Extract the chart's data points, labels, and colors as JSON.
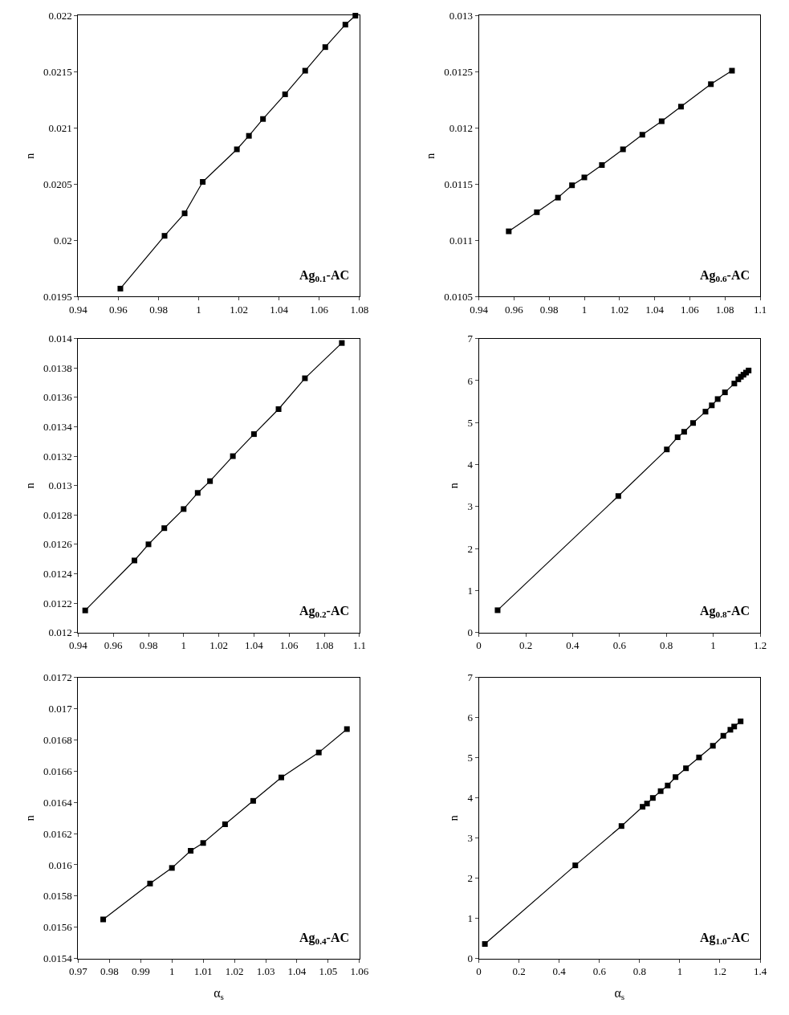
{
  "chart_data": [
    {
      "type": "line",
      "ylabel": "n",
      "annotations": [
        "Ag$_{0.1}$-AC"
      ],
      "marker": "square",
      "line_style": "solid",
      "xlim": [
        0.94,
        1.08
      ],
      "xticks": [
        0.94,
        0.96,
        0.98,
        1,
        1.02,
        1.04,
        1.06,
        1.08
      ],
      "ylim": [
        0.0195,
        0.022
      ],
      "yticks": [
        0.0195,
        0.02,
        0.0205,
        0.021,
        0.0215,
        0.022
      ],
      "series": [
        {
          "color": "#000000",
          "x": [
            0.961,
            0.983,
            0.993,
            1.002,
            1.019,
            1.025,
            1.032,
            1.043,
            1.053,
            1.063,
            1.073,
            1.078
          ],
          "values": [
            0.01957,
            0.02004,
            0.02024,
            0.02052,
            0.02081,
            0.02093,
            0.02108,
            0.0213,
            0.02151,
            0.02172,
            0.02192,
            0.022
          ]
        }
      ]
    },
    {
      "type": "line",
      "ylabel": "n",
      "annotations": [
        "Ag$_{0.6}$-AC"
      ],
      "marker": "square",
      "line_style": "solid",
      "xlim": [
        0.94,
        1.1
      ],
      "xticks": [
        0.94,
        0.96,
        0.98,
        1,
        1.02,
        1.04,
        1.06,
        1.08,
        1.1
      ],
      "ylim": [
        0.0105,
        0.013
      ],
      "yticks": [
        0.0105,
        0.011,
        0.0115,
        0.012,
        0.0125,
        0.013
      ],
      "series": [
        {
          "color": "#000000",
          "x": [
            0.957,
            0.973,
            0.985,
            0.993,
            1.0,
            1.01,
            1.022,
            1.033,
            1.044,
            1.055,
            1.072,
            1.084
          ],
          "values": [
            0.01108,
            0.01125,
            0.01138,
            0.01149,
            0.01156,
            0.01167,
            0.01181,
            0.01194,
            0.01206,
            0.01219,
            0.01239,
            0.01251
          ]
        }
      ]
    },
    {
      "type": "line",
      "ylabel": "n",
      "annotations": [
        "Ag$_{0.2}$-AC"
      ],
      "marker": "square",
      "line_style": "solid",
      "xlim": [
        0.94,
        1.1
      ],
      "xticks": [
        0.94,
        0.96,
        0.98,
        1,
        1.02,
        1.04,
        1.06,
        1.08,
        1.1
      ],
      "ylim": [
        0.012,
        0.014
      ],
      "yticks": [
        0.012,
        0.0122,
        0.0124,
        0.0126,
        0.0128,
        0.013,
        0.0132,
        0.0134,
        0.0136,
        0.0138,
        0.014
      ],
      "series": [
        {
          "color": "#000000",
          "x": [
            0.944,
            0.972,
            0.98,
            0.989,
            1.0,
            1.008,
            1.015,
            1.028,
            1.04,
            1.054,
            1.069,
            1.09
          ],
          "values": [
            0.01215,
            0.01249,
            0.0126,
            0.01271,
            0.01284,
            0.01295,
            0.01303,
            0.0132,
            0.01335,
            0.01352,
            0.01373,
            0.01397
          ]
        }
      ]
    },
    {
      "type": "line",
      "ylabel": "n",
      "annotations": [
        "Ag$_{0.8}$-AC"
      ],
      "marker": "square",
      "line_style": "solid",
      "xlim": [
        0,
        1.2
      ],
      "xticks": [
        0,
        0.2,
        0.4,
        0.6,
        0.8,
        1,
        1.2
      ],
      "ylim": [
        0,
        7
      ],
      "yticks": [
        0,
        1,
        2,
        3,
        4,
        5,
        6,
        7
      ],
      "series": [
        {
          "color": "#000000",
          "x": [
            0.08,
            0.595,
            0.802,
            0.848,
            0.876,
            0.914,
            0.967,
            0.994,
            1.019,
            1.05,
            1.09,
            1.107,
            1.118,
            1.129,
            1.14,
            1.151
          ],
          "values": [
            0.53,
            3.25,
            4.36,
            4.65,
            4.78,
            4.99,
            5.26,
            5.41,
            5.56,
            5.72,
            5.93,
            6.03,
            6.09,
            6.14,
            6.19,
            6.24
          ]
        }
      ]
    },
    {
      "type": "line",
      "ylabel": "n",
      "xlabel": "α$_{s}$",
      "annotations": [
        "Ag$_{0.4}$-AC"
      ],
      "marker": "square",
      "line_style": "solid",
      "xlim": [
        0.97,
        1.06
      ],
      "xticks": [
        0.97,
        0.98,
        0.99,
        1,
        1.01,
        1.02,
        1.03,
        1.04,
        1.05,
        1.06
      ],
      "ylim": [
        0.0154,
        0.0172
      ],
      "yticks": [
        0.0154,
        0.0156,
        0.0158,
        0.016,
        0.0162,
        0.0164,
        0.0166,
        0.0168,
        0.017,
        0.0172
      ],
      "series": [
        {
          "color": "#000000",
          "x": [
            0.978,
            0.993,
            1.0,
            1.006,
            1.01,
            1.017,
            1.026,
            1.035,
            1.047,
            1.056
          ],
          "values": [
            0.01565,
            0.01588,
            0.01598,
            0.01609,
            0.01614,
            0.01626,
            0.01641,
            0.01656,
            0.01672,
            0.01687
          ]
        }
      ]
    },
    {
      "type": "line",
      "ylabel": "n",
      "xlabel": "α$_{s}$",
      "annotations": [
        "Ag$_{1.0}$-AC"
      ],
      "marker": "square",
      "line_style": "solid",
      "xlim": [
        0,
        1.4
      ],
      "xticks": [
        0,
        0.2,
        0.4,
        0.6,
        0.8,
        1,
        1.2,
        1.4
      ],
      "ylim": [
        0,
        7
      ],
      "yticks": [
        0,
        1,
        2,
        3,
        4,
        5,
        6,
        7
      ],
      "series": [
        {
          "color": "#000000",
          "x": [
            0.03,
            0.48,
            0.71,
            0.815,
            0.837,
            0.866,
            0.905,
            0.94,
            0.979,
            1.031,
            1.096,
            1.165,
            1.217,
            1.252,
            1.271,
            1.303
          ],
          "values": [
            0.36,
            2.32,
            3.3,
            3.78,
            3.86,
            4.0,
            4.17,
            4.31,
            4.52,
            4.74,
            5.01,
            5.3,
            5.55,
            5.7,
            5.78,
            5.91
          ]
        }
      ]
    }
  ]
}
